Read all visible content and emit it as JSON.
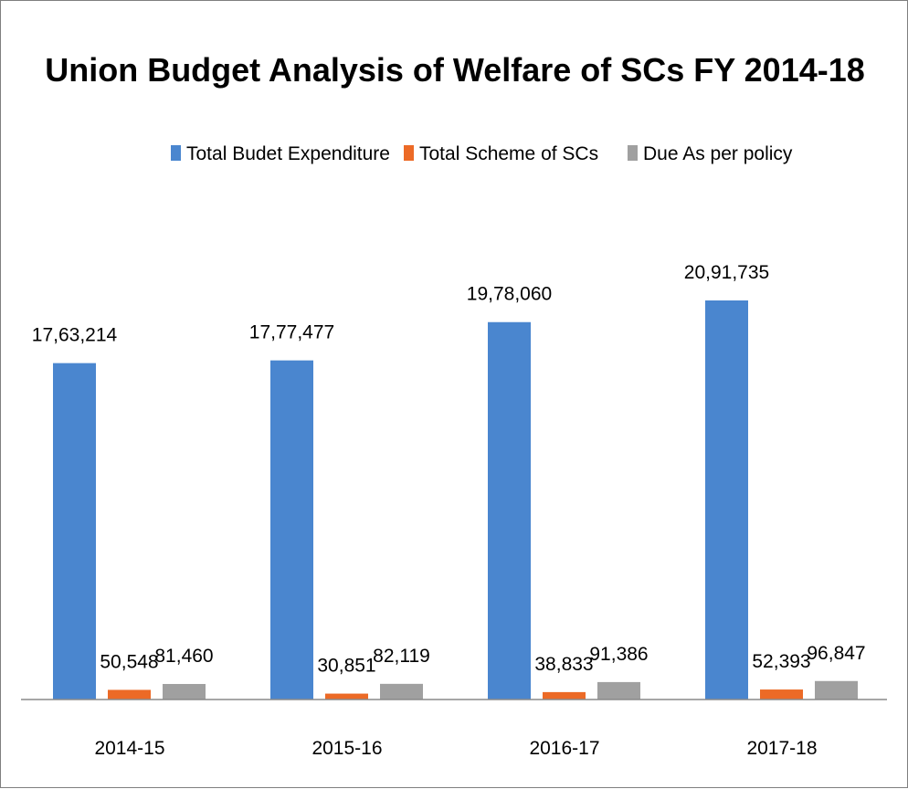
{
  "chart_data": {
    "type": "bar",
    "title": "Union Budget Analysis of Welfare of SCs FY 2014-18",
    "categories": [
      "2014-15",
      "2015-16",
      "2016-17",
      "2017-18"
    ],
    "series": [
      {
        "name": "Total Budet Expenditure",
        "color": "#4a86cf",
        "values": [
          1763214,
          1777477,
          1978060,
          2091735
        ],
        "labels": [
          "17,63,214",
          "17,77,477",
          "19,78,060",
          "20,91,735"
        ]
      },
      {
        "name": "Total Scheme of SCs",
        "color": "#ec6a26",
        "values": [
          50548,
          30851,
          38833,
          52393
        ],
        "labels": [
          "50,548",
          "30,851",
          "38,833",
          "52,393"
        ]
      },
      {
        "name": "Due As per policy",
        "color": "#a0a0a0",
        "values": [
          81460,
          82119,
          91386,
          96847
        ],
        "labels": [
          "81,460",
          "82,119",
          "91,386",
          "96,847"
        ]
      }
    ],
    "xlabel": "",
    "ylabel": "",
    "legend_position": "top-center",
    "grid": false
  }
}
